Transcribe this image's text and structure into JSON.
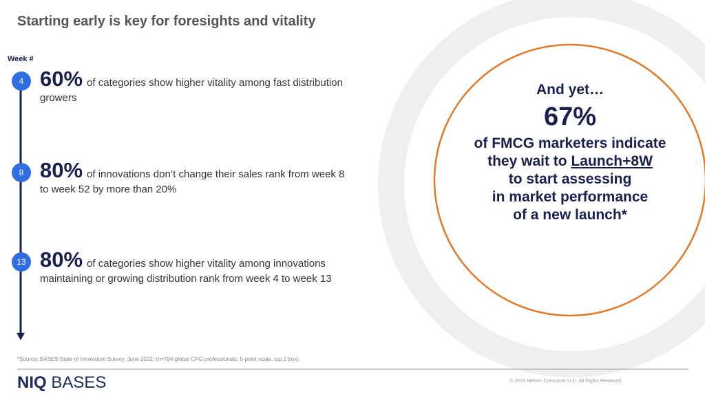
{
  "header": {
    "title": "Starting early is key for foresights and vitality"
  },
  "timeline": {
    "label": "Week #",
    "items": [
      {
        "week": "4",
        "stat": "60%",
        "text": "of categories show higher vitality among fast distribution growers"
      },
      {
        "week": "8",
        "stat": "80%",
        "text": "of innovations don’t change their sales rank from week 8 to week 52 by more than 20%"
      },
      {
        "week": "13",
        "stat": "80%",
        "text": "of categories show higher vitality among innovations maintaining or growing distribution rank from week 4 to week 13"
      }
    ]
  },
  "callout": {
    "intro": "And yet…",
    "stat": "67%",
    "lines": [
      "of FMCG marketers indicate",
      "they wait to",
      "Launch+8W",
      "to start assessing",
      "in market performance",
      "of a new launch*"
    ]
  },
  "footer": {
    "source": "*Source: BASES State of Innovation Survey, June 2022;  (n=794 global CPG professionals; 5-point scale, top 2 box).",
    "logo_brand": "NIQ",
    "logo_product": "BASES",
    "copyright": "© 2023 Nielsen Consumer LLC. All Rights Reserved."
  }
}
